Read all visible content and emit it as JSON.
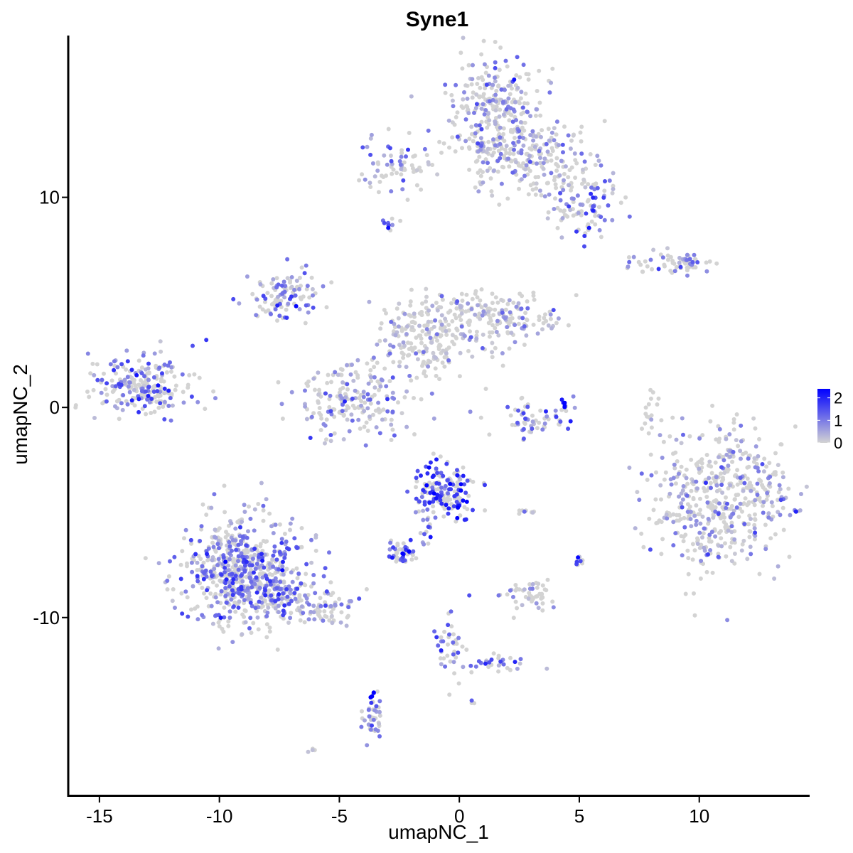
{
  "chart_data": {
    "type": "scatter",
    "title": "Syne1",
    "xlabel": "umapNC_1",
    "ylabel": "umapNC_2",
    "xlim": [
      -16.3,
      14.6
    ],
    "ylim": [
      -18.5,
      17.7
    ],
    "xticks": [
      -15,
      -10,
      -5,
      0,
      5,
      10
    ],
    "yticks": [
      -10,
      0,
      10
    ],
    "grid": false,
    "color_scale": {
      "low": "#d3d3d3",
      "high": "#0000ff",
      "min": 0,
      "max": 2.4,
      "ticks": [
        0,
        1,
        2
      ],
      "legend_position": "right"
    },
    "clusters": [
      {
        "x": 1.5,
        "y": 14.3,
        "sx": 1.0,
        "sy": 1.2,
        "n": 260,
        "expr": 0.45
      },
      {
        "x": 3.0,
        "y": 11.8,
        "sx": 1.6,
        "sy": 0.9,
        "n": 240,
        "expr": 0.4
      },
      {
        "x": 5.3,
        "y": 9.6,
        "sx": 0.7,
        "sy": 0.7,
        "n": 90,
        "expr": 0.8
      },
      {
        "x": -2.5,
        "y": 11.5,
        "sx": 0.9,
        "sy": 0.6,
        "n": 70,
        "expr": 0.6
      },
      {
        "x": -2.9,
        "y": 8.6,
        "sx": 0.15,
        "sy": 0.15,
        "n": 10,
        "expr": 1.4
      },
      {
        "x": 8.5,
        "y": 6.9,
        "sx": 1.0,
        "sy": 0.3,
        "n": 45,
        "expr": 0.6
      },
      {
        "x": 9.6,
        "y": 6.8,
        "sx": 0.35,
        "sy": 0.25,
        "n": 25,
        "expr": 1.0
      },
      {
        "x": -7.2,
        "y": 5.3,
        "sx": 0.8,
        "sy": 0.6,
        "n": 110,
        "expr": 0.9
      },
      {
        "x": -1.5,
        "y": 3.2,
        "sx": 1.0,
        "sy": 1.0,
        "n": 200,
        "expr": 0.15
      },
      {
        "x": 1.5,
        "y": 4.3,
        "sx": 1.3,
        "sy": 0.7,
        "n": 180,
        "expr": 0.25
      },
      {
        "x": -4.5,
        "y": 0.4,
        "sx": 1.3,
        "sy": 0.8,
        "n": 190,
        "expr": 0.6
      },
      {
        "x": -13.2,
        "y": 1.0,
        "sx": 1.1,
        "sy": 0.7,
        "n": 230,
        "expr": 1.0
      },
      {
        "x": 3.0,
        "y": -0.5,
        "sx": 0.8,
        "sy": 0.5,
        "n": 60,
        "expr": 0.9
      },
      {
        "x": 4.4,
        "y": 0.1,
        "sx": 0.1,
        "sy": 0.12,
        "n": 8,
        "expr": 2.1
      },
      {
        "x": 11.0,
        "y": -4.4,
        "sx": 1.5,
        "sy": 1.6,
        "n": 520,
        "expr": 0.35
      },
      {
        "x": -0.6,
        "y": -4.0,
        "sx": 0.65,
        "sy": 0.65,
        "n": 170,
        "expr": 1.6
      },
      {
        "x": -2.4,
        "y": -6.9,
        "sx": 0.3,
        "sy": 0.25,
        "n": 45,
        "expr": 1.5
      },
      {
        "x": -1.5,
        "y": -5.6,
        "sx": 0.25,
        "sy": 0.5,
        "n": 20,
        "expr": 1.0
      },
      {
        "x": 5.0,
        "y": -7.3,
        "sx": 0.1,
        "sy": 0.15,
        "n": 10,
        "expr": 1.6
      },
      {
        "x": 2.8,
        "y": -8.9,
        "sx": 0.6,
        "sy": 0.4,
        "n": 50,
        "expr": 0.2
      },
      {
        "x": -9.0,
        "y": -7.8,
        "sx": 1.2,
        "sy": 1.3,
        "n": 650,
        "expr": 0.95
      },
      {
        "x": -7.3,
        "y": -8.9,
        "sx": 0.9,
        "sy": 0.6,
        "n": 90,
        "expr": 0.7
      },
      {
        "x": -5.5,
        "y": -9.7,
        "sx": 0.7,
        "sy": 0.4,
        "n": 60,
        "expr": 0.5
      },
      {
        "x": -3.6,
        "y": -14.8,
        "sx": 0.2,
        "sy": 0.5,
        "n": 40,
        "expr": 0.8
      },
      {
        "x": -3.6,
        "y": -13.7,
        "sx": 0.05,
        "sy": 0.1,
        "n": 6,
        "expr": 2.2
      },
      {
        "x": -0.3,
        "y": -11.3,
        "sx": 0.35,
        "sy": 0.8,
        "n": 40,
        "expr": 0.9
      },
      {
        "x": 1.6,
        "y": -12.2,
        "sx": 0.7,
        "sy": 0.2,
        "n": 30,
        "expr": 0.9
      },
      {
        "x": 2.8,
        "y": -5.0,
        "sx": 0.25,
        "sy": 0.07,
        "n": 8,
        "expr": 0.9
      },
      {
        "x": 8.0,
        "y": -0.2,
        "sx": 0.15,
        "sy": 0.6,
        "n": 18,
        "expr": 0.1
      },
      {
        "x": 0.6,
        "y": -14.0,
        "sx": 0.05,
        "sy": 0.05,
        "n": 4,
        "expr": 1.0
      },
      {
        "x": -6.1,
        "y": -16.3,
        "sx": 0.1,
        "sy": 0.05,
        "n": 4,
        "expr": 0.1
      }
    ]
  }
}
